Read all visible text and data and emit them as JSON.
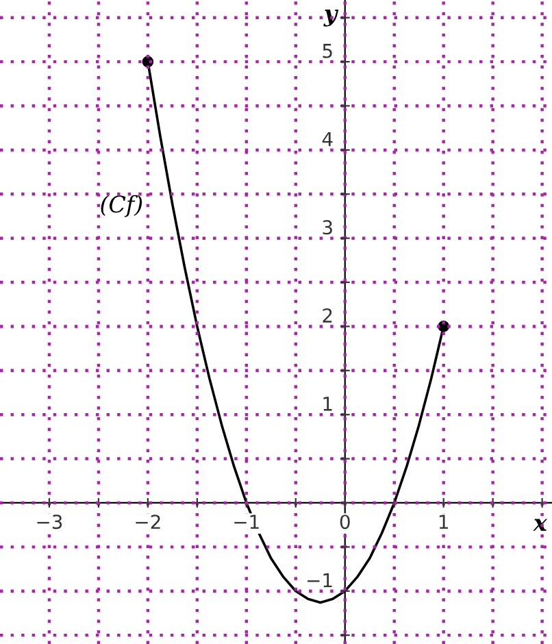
{
  "chart_data": {
    "type": "line",
    "xlabel": "x",
    "ylabel": "y",
    "annotations": [
      "(Cf)"
    ],
    "xlim": [
      -3.5,
      2.1
    ],
    "ylim": [
      -1.6,
      5.7
    ],
    "xticks": [
      -3,
      {
        "value": -2.5,
        "label": null
      },
      -2,
      {
        "value": -1.5,
        "label": null
      },
      -1,
      {
        "value": -0.5,
        "label": null
      },
      0,
      {
        "value": 0.5,
        "label": null
      },
      1,
      {
        "value": 1.5,
        "label": null
      },
      {
        "value": 2,
        "label": null
      }
    ],
    "yticks": [
      {
        "value": -1.5,
        "label": null
      },
      -1,
      {
        "value": -0.5,
        "label": null
      },
      {
        "value": 0,
        "label": null
      },
      {
        "value": 0.5,
        "label": null
      },
      1,
      {
        "value": 1.5,
        "label": null
      },
      2,
      {
        "value": 2.5,
        "label": null
      },
      3,
      {
        "value": 3.5,
        "label": null
      },
      4,
      {
        "value": 4.5,
        "label": null
      },
      5,
      {
        "value": 5.5,
        "label": null
      }
    ],
    "grid": true,
    "series": [
      {
        "color": "#000000",
        "x": [
          -2,
          -1.875,
          -1.75,
          -1.625,
          -1.5,
          -1.375,
          -1.25,
          -1.125,
          -1,
          -0.875,
          -0.75,
          -0.625,
          -0.5,
          -0.375,
          -0.25,
          -0.125,
          0,
          0.125,
          0.25,
          0.375,
          0.5,
          0.625,
          0.75,
          0.875,
          1
        ],
        "values": [
          5,
          4.16,
          3.38,
          2.66,
          2,
          1.41,
          0.88,
          0.41,
          0,
          -0.34,
          -0.63,
          -0.84,
          -1,
          -1.09,
          -1.13,
          -1.09,
          -1,
          -0.84,
          -0.63,
          -0.34,
          0,
          0.41,
          0.88,
          1.41,
          2
        ]
      },
      {
        "type": "scatter",
        "color": "#000000",
        "marker": "circle",
        "x": [
          -2,
          1
        ],
        "values": [
          5,
          2
        ]
      }
    ]
  }
}
